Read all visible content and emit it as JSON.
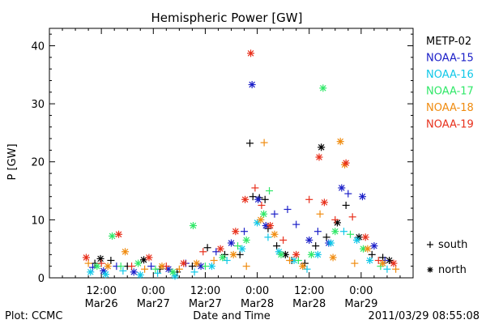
{
  "chart_data": {
    "type": "scatter",
    "title": "Hemispheric Power [GW]",
    "xlabel": "Date and Time",
    "ylabel": "P [GW]",
    "ylim": [
      0,
      43
    ],
    "xlim": [
      0,
      84
    ],
    "x_unit": "hours since 2011-03-26 00:00",
    "x_ticks": [
      {
        "x": 12,
        "line1": "12:00",
        "line2": "Mar26"
      },
      {
        "x": 24,
        "line1": "0:00",
        "line2": "Mar27"
      },
      {
        "x": 36,
        "line1": "12:00",
        "line2": "Mar27"
      },
      {
        "x": 48,
        "line1": "0:00",
        "line2": "Mar28"
      },
      {
        "x": 60,
        "line1": "12:00",
        "line2": "Mar28"
      },
      {
        "x": 72,
        "line1": "0:00",
        "line2": "Mar29"
      }
    ],
    "y_ticks": [
      0,
      10,
      20,
      30,
      40
    ],
    "grid": false,
    "legend_position": "right",
    "marker_legend": [
      {
        "symbol": "+",
        "label": "south"
      },
      {
        "symbol": "*",
        "label": "north"
      }
    ],
    "series": [
      {
        "name": "METP-02",
        "color": "#000000",
        "points": [
          {
            "x": 10.5,
            "y": 2.5,
            "m": "+"
          },
          {
            "x": 11.8,
            "y": 3.3,
            "m": "*"
          },
          {
            "x": 14.2,
            "y": 3.0,
            "m": "+"
          },
          {
            "x": 18.0,
            "y": 2.0,
            "m": "+"
          },
          {
            "x": 21.8,
            "y": 3.1,
            "m": "*"
          },
          {
            "x": 25.5,
            "y": 1.5,
            "m": "+"
          },
          {
            "x": 29.5,
            "y": 1.0,
            "m": "+"
          },
          {
            "x": 33.0,
            "y": 2.0,
            "m": "+"
          },
          {
            "x": 36.5,
            "y": 5.2,
            "m": "+"
          },
          {
            "x": 40.5,
            "y": 4.0,
            "m": "+"
          },
          {
            "x": 44.0,
            "y": 4.0,
            "m": "+"
          },
          {
            "x": 46.3,
            "y": 23.2,
            "m": "+"
          },
          {
            "x": 47.0,
            "y": 14.0,
            "m": "+"
          },
          {
            "x": 48.5,
            "y": 13.8,
            "m": "+"
          },
          {
            "x": 49.8,
            "y": 13.5,
            "m": "+"
          },
          {
            "x": 50.5,
            "y": 8.5,
            "m": "+"
          },
          {
            "x": 52.5,
            "y": 5.5,
            "m": "+"
          },
          {
            "x": 54.5,
            "y": 4.0,
            "m": "*"
          },
          {
            "x": 56.0,
            "y": 3.0,
            "m": "+"
          },
          {
            "x": 59.0,
            "y": 2.5,
            "m": "+"
          },
          {
            "x": 61.5,
            "y": 5.5,
            "m": "+"
          },
          {
            "x": 62.8,
            "y": 22.5,
            "m": "*"
          },
          {
            "x": 64.0,
            "y": 7.0,
            "m": "+"
          },
          {
            "x": 66.5,
            "y": 9.5,
            "m": "*"
          },
          {
            "x": 68.5,
            "y": 12.5,
            "m": "+"
          },
          {
            "x": 71.5,
            "y": 7.0,
            "m": "*"
          },
          {
            "x": 74.5,
            "y": 4.0,
            "m": "+"
          },
          {
            "x": 77.0,
            "y": 3.5,
            "m": "+"
          },
          {
            "x": 78.5,
            "y": 3.0,
            "m": "*"
          }
        ]
      },
      {
        "name": "NOAA-15",
        "color": "#1c20c8",
        "points": [
          {
            "x": 10.0,
            "y": 1.8,
            "m": "+"
          },
          {
            "x": 12.5,
            "y": 1.2,
            "m": "*"
          },
          {
            "x": 15.5,
            "y": 2.0,
            "m": "+"
          },
          {
            "x": 19.5,
            "y": 1.0,
            "m": "*"
          },
          {
            "x": 23.5,
            "y": 2.0,
            "m": "+"
          },
          {
            "x": 27.5,
            "y": 1.5,
            "m": "*"
          },
          {
            "x": 31.5,
            "y": 2.5,
            "m": "+"
          },
          {
            "x": 35.0,
            "y": 2.0,
            "m": "*"
          },
          {
            "x": 38.5,
            "y": 4.5,
            "m": "+"
          },
          {
            "x": 42.0,
            "y": 6.0,
            "m": "*"
          },
          {
            "x": 45.0,
            "y": 8.0,
            "m": "+"
          },
          {
            "x": 46.8,
            "y": 33.3,
            "m": "*"
          },
          {
            "x": 48.2,
            "y": 13.5,
            "m": "*"
          },
          {
            "x": 50.0,
            "y": 9.0,
            "m": "*"
          },
          {
            "x": 52.0,
            "y": 11.0,
            "m": "+"
          },
          {
            "x": 55.0,
            "y": 11.8,
            "m": "+"
          },
          {
            "x": 57.0,
            "y": 9.2,
            "m": "+"
          },
          {
            "x": 60.0,
            "y": 6.5,
            "m": "*"
          },
          {
            "x": 62.0,
            "y": 8.0,
            "m": "+"
          },
          {
            "x": 64.5,
            "y": 6.0,
            "m": "*"
          },
          {
            "x": 67.5,
            "y": 15.5,
            "m": "*"
          },
          {
            "x": 69.0,
            "y": 14.5,
            "m": "+"
          },
          {
            "x": 72.3,
            "y": 14.0,
            "m": "*"
          },
          {
            "x": 75.0,
            "y": 5.5,
            "m": "*"
          },
          {
            "x": 77.5,
            "y": 3.0,
            "m": "+"
          }
        ]
      },
      {
        "name": "NOAA-16",
        "color": "#10c8e8",
        "points": [
          {
            "x": 9.5,
            "y": 1.0,
            "m": "*"
          },
          {
            "x": 13.0,
            "y": 0.6,
            "m": "*"
          },
          {
            "x": 17.0,
            "y": 1.2,
            "m": "+"
          },
          {
            "x": 21.0,
            "y": 0.5,
            "m": "*"
          },
          {
            "x": 25.0,
            "y": 0.8,
            "m": "+"
          },
          {
            "x": 29.0,
            "y": 0.3,
            "m": "*"
          },
          {
            "x": 33.5,
            "y": 1.0,
            "m": "+"
          },
          {
            "x": 37.5,
            "y": 2.0,
            "m": "*"
          },
          {
            "x": 41.0,
            "y": 3.0,
            "m": "+"
          },
          {
            "x": 44.5,
            "y": 5.0,
            "m": "*"
          },
          {
            "x": 48.0,
            "y": 9.5,
            "m": "*"
          },
          {
            "x": 50.5,
            "y": 7.0,
            "m": "+"
          },
          {
            "x": 53.0,
            "y": 4.5,
            "m": "*"
          },
          {
            "x": 56.5,
            "y": 3.0,
            "m": "*"
          },
          {
            "x": 59.5,
            "y": 1.5,
            "m": "+"
          },
          {
            "x": 62.0,
            "y": 4.0,
            "m": "*"
          },
          {
            "x": 65.0,
            "y": 6.0,
            "m": "*"
          },
          {
            "x": 68.0,
            "y": 8.0,
            "m": "+"
          },
          {
            "x": 71.0,
            "y": 6.5,
            "m": "*"
          },
          {
            "x": 74.0,
            "y": 3.0,
            "m": "*"
          },
          {
            "x": 78.0,
            "y": 1.5,
            "m": "+"
          }
        ]
      },
      {
        "name": "NOAA-17",
        "color": "#30e868",
        "points": [
          {
            "x": 11.0,
            "y": 2.0,
            "m": "*"
          },
          {
            "x": 14.5,
            "y": 7.2,
            "m": "*"
          },
          {
            "x": 16.5,
            "y": 2.0,
            "m": "+"
          },
          {
            "x": 20.5,
            "y": 2.5,
            "m": "*"
          },
          {
            "x": 24.5,
            "y": 1.5,
            "m": "+"
          },
          {
            "x": 28.5,
            "y": 1.0,
            "m": "*"
          },
          {
            "x": 33.2,
            "y": 9.0,
            "m": "*"
          },
          {
            "x": 36.0,
            "y": 2.0,
            "m": "+"
          },
          {
            "x": 40.0,
            "y": 3.5,
            "m": "*"
          },
          {
            "x": 43.5,
            "y": 5.5,
            "m": "+"
          },
          {
            "x": 45.5,
            "y": 6.5,
            "m": "*"
          },
          {
            "x": 49.5,
            "y": 11.0,
            "m": "*"
          },
          {
            "x": 50.8,
            "y": 15.0,
            "m": "+"
          },
          {
            "x": 53.5,
            "y": 4.0,
            "m": "*"
          },
          {
            "x": 57.5,
            "y": 3.0,
            "m": "+"
          },
          {
            "x": 60.5,
            "y": 4.0,
            "m": "*"
          },
          {
            "x": 63.2,
            "y": 32.7,
            "m": "*"
          },
          {
            "x": 66.0,
            "y": 8.0,
            "m": "*"
          },
          {
            "x": 69.5,
            "y": 7.5,
            "m": "+"
          },
          {
            "x": 72.5,
            "y": 5.0,
            "m": "*"
          },
          {
            "x": 76.5,
            "y": 2.0,
            "m": "+"
          }
        ]
      },
      {
        "name": "NOAA-18",
        "color": "#f08c10",
        "points": [
          {
            "x": 9.0,
            "y": 2.5,
            "m": "+"
          },
          {
            "x": 13.5,
            "y": 2.0,
            "m": "*"
          },
          {
            "x": 17.5,
            "y": 4.5,
            "m": "*"
          },
          {
            "x": 22.0,
            "y": 1.5,
            "m": "+"
          },
          {
            "x": 26.0,
            "y": 2.0,
            "m": "*"
          },
          {
            "x": 30.0,
            "y": 1.5,
            "m": "+"
          },
          {
            "x": 34.0,
            "y": 2.5,
            "m": "*"
          },
          {
            "x": 38.0,
            "y": 3.0,
            "m": "+"
          },
          {
            "x": 42.5,
            "y": 4.0,
            "m": "*"
          },
          {
            "x": 45.5,
            "y": 2.0,
            "m": "+"
          },
          {
            "x": 48.8,
            "y": 10.0,
            "m": "*"
          },
          {
            "x": 49.6,
            "y": 23.3,
            "m": "+"
          },
          {
            "x": 52.0,
            "y": 7.5,
            "m": "*"
          },
          {
            "x": 55.5,
            "y": 3.0,
            "m": "+"
          },
          {
            "x": 58.5,
            "y": 2.0,
            "m": "*"
          },
          {
            "x": 62.5,
            "y": 11.0,
            "m": "+"
          },
          {
            "x": 65.5,
            "y": 3.5,
            "m": "*"
          },
          {
            "x": 67.2,
            "y": 23.5,
            "m": "*"
          },
          {
            "x": 68.2,
            "y": 19.5,
            "m": "*"
          },
          {
            "x": 70.5,
            "y": 2.5,
            "m": "+"
          },
          {
            "x": 73.5,
            "y": 5.0,
            "m": "*"
          },
          {
            "x": 77.0,
            "y": 2.5,
            "m": "*"
          },
          {
            "x": 80.0,
            "y": 1.5,
            "m": "+"
          }
        ]
      },
      {
        "name": "NOAA-19",
        "color": "#e8301c",
        "points": [
          {
            "x": 8.5,
            "y": 3.5,
            "m": "*"
          },
          {
            "x": 12.0,
            "y": 2.5,
            "m": "+"
          },
          {
            "x": 16.0,
            "y": 7.5,
            "m": "*"
          },
          {
            "x": 19.0,
            "y": 2.0,
            "m": "+"
          },
          {
            "x": 23.0,
            "y": 3.5,
            "m": "*"
          },
          {
            "x": 27.0,
            "y": 2.0,
            "m": "+"
          },
          {
            "x": 31.0,
            "y": 2.5,
            "m": "*"
          },
          {
            "x": 35.5,
            "y": 4.5,
            "m": "+"
          },
          {
            "x": 39.5,
            "y": 5.0,
            "m": "*"
          },
          {
            "x": 43.0,
            "y": 8.0,
            "m": "*"
          },
          {
            "x": 45.2,
            "y": 13.5,
            "m": "*"
          },
          {
            "x": 46.5,
            "y": 38.7,
            "m": "*"
          },
          {
            "x": 47.5,
            "y": 15.5,
            "m": "+"
          },
          {
            "x": 49.0,
            "y": 12.5,
            "m": "+"
          },
          {
            "x": 51.0,
            "y": 9.0,
            "m": "*"
          },
          {
            "x": 54.0,
            "y": 6.5,
            "m": "+"
          },
          {
            "x": 57.0,
            "y": 4.0,
            "m": "*"
          },
          {
            "x": 60.0,
            "y": 13.5,
            "m": "+"
          },
          {
            "x": 62.3,
            "y": 20.8,
            "m": "*"
          },
          {
            "x": 63.5,
            "y": 13.0,
            "m": "*"
          },
          {
            "x": 66.0,
            "y": 10.0,
            "m": "+"
          },
          {
            "x": 68.5,
            "y": 19.8,
            "m": "*"
          },
          {
            "x": 70.0,
            "y": 10.5,
            "m": "+"
          },
          {
            "x": 73.0,
            "y": 7.0,
            "m": "*"
          },
          {
            "x": 76.0,
            "y": 3.0,
            "m": "+"
          },
          {
            "x": 79.5,
            "y": 2.5,
            "m": "*"
          }
        ]
      }
    ]
  },
  "footer": {
    "plot_credit": "Plot: CCMC",
    "timestamp": "2011/03/29 08:55:08"
  }
}
